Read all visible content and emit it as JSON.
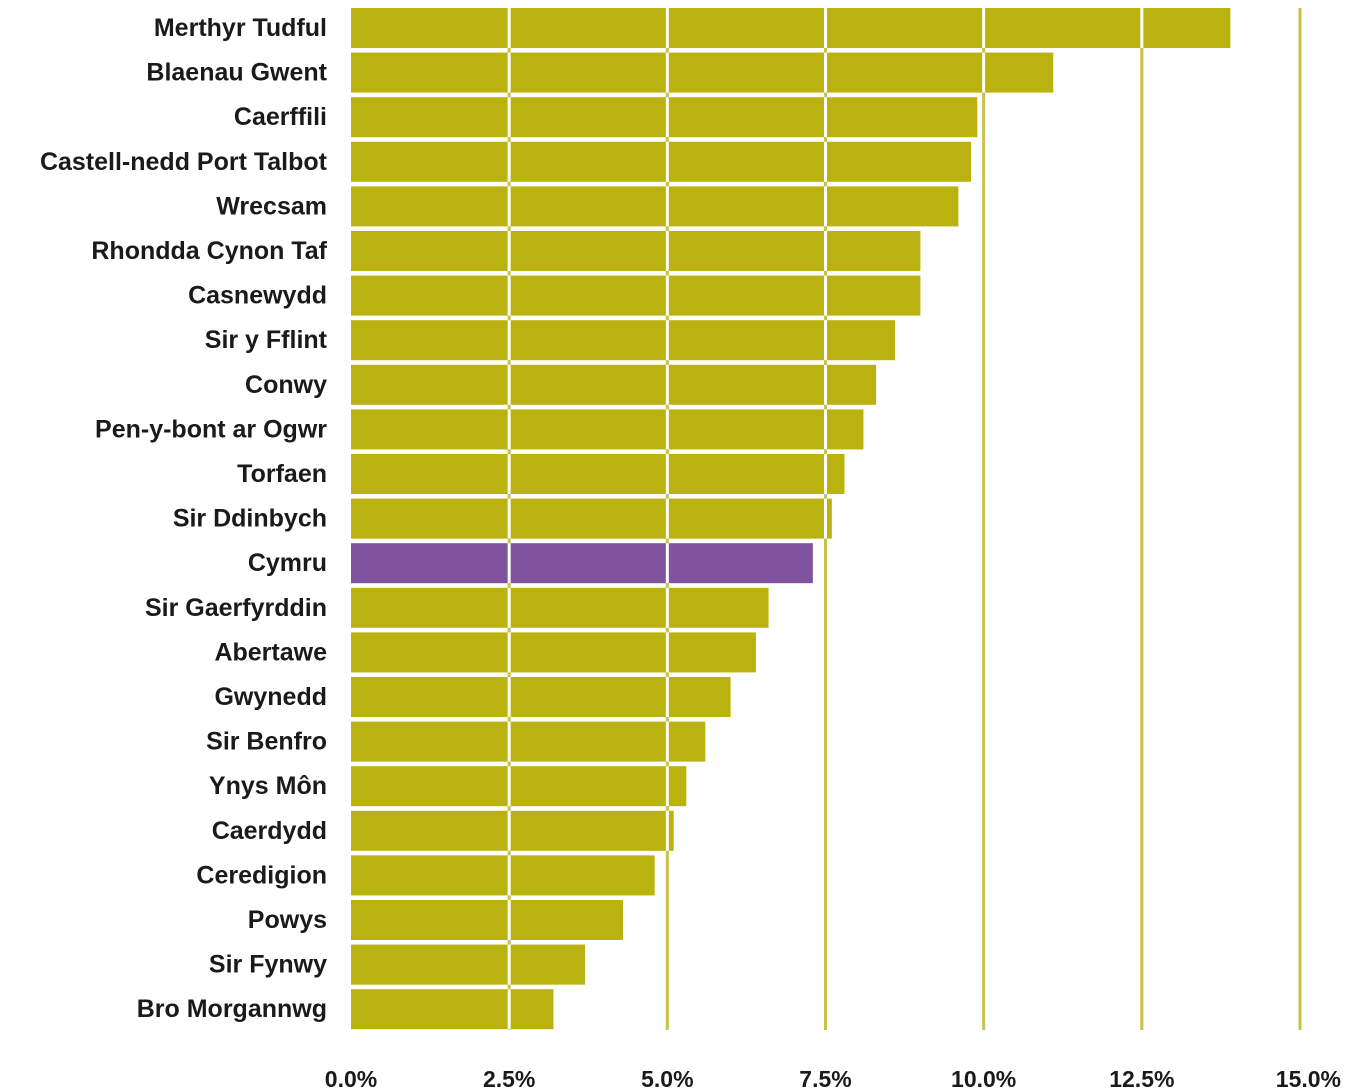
{
  "chart_data": {
    "type": "bar",
    "orientation": "horizontal",
    "categories": [
      "Merthyr Tudful",
      "Blaenau Gwent",
      "Caerffili",
      "Castell-nedd Port Talbot",
      "Wrecsam",
      "Rhondda Cynon Taf",
      "Casnewydd",
      "Sir y Fflint",
      "Conwy",
      "Pen-y-bont ar Ogwr",
      "Torfaen",
      "Sir Ddinbych",
      "Cymru",
      "Sir Gaerfyrddin",
      "Abertawe",
      "Gwynedd",
      "Sir Benfro",
      "Ynys Môn",
      "Caerdydd",
      "Ceredigion",
      "Powys",
      "Sir Fynwy",
      "Bro Morgannwg"
    ],
    "values": [
      13.9,
      11.1,
      9.9,
      9.8,
      9.6,
      9.0,
      9.0,
      8.6,
      8.3,
      8.1,
      7.8,
      7.6,
      7.3,
      6.6,
      6.4,
      6.0,
      5.6,
      5.3,
      5.1,
      4.8,
      4.3,
      3.7,
      3.2
    ],
    "highlight_category": "Cymru",
    "colors": {
      "bar": "#bab20e",
      "highlight": "#7f539d",
      "gridline": "#c7c24a",
      "background": "#ffffff"
    },
    "xlim": [
      0,
      15
    ],
    "xticks": [
      0,
      2.5,
      5,
      7.5,
      10,
      12.5,
      15
    ],
    "xtick_labels": [
      "0.0%",
      "2.5%",
      "5.0%",
      "7.5%",
      "10.0%",
      "12.5%",
      "15.0%"
    ],
    "grid": true,
    "title": "",
    "xlabel": "",
    "ylabel": "",
    "legend": false
  }
}
